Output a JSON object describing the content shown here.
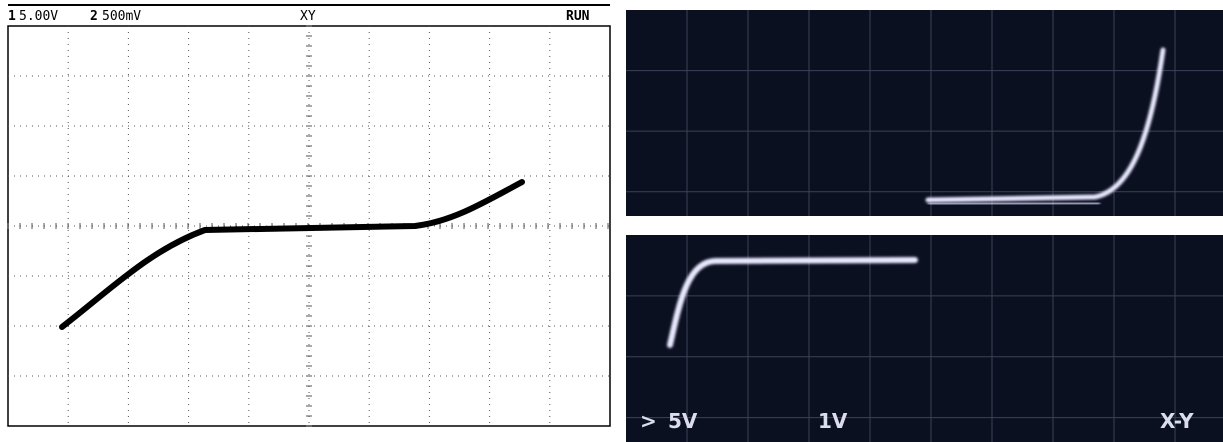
{
  "left_screen": {
    "channel1_label": "1",
    "channel1_scale": "5.00V",
    "channel2_label": "2",
    "channel2_scale": "500mV",
    "mode": "XY",
    "status": "RUN"
  },
  "right_screen": {
    "marker": ">",
    "channel1_scale": "5V",
    "channel2_scale": "1V",
    "mode": "X-Y"
  }
}
